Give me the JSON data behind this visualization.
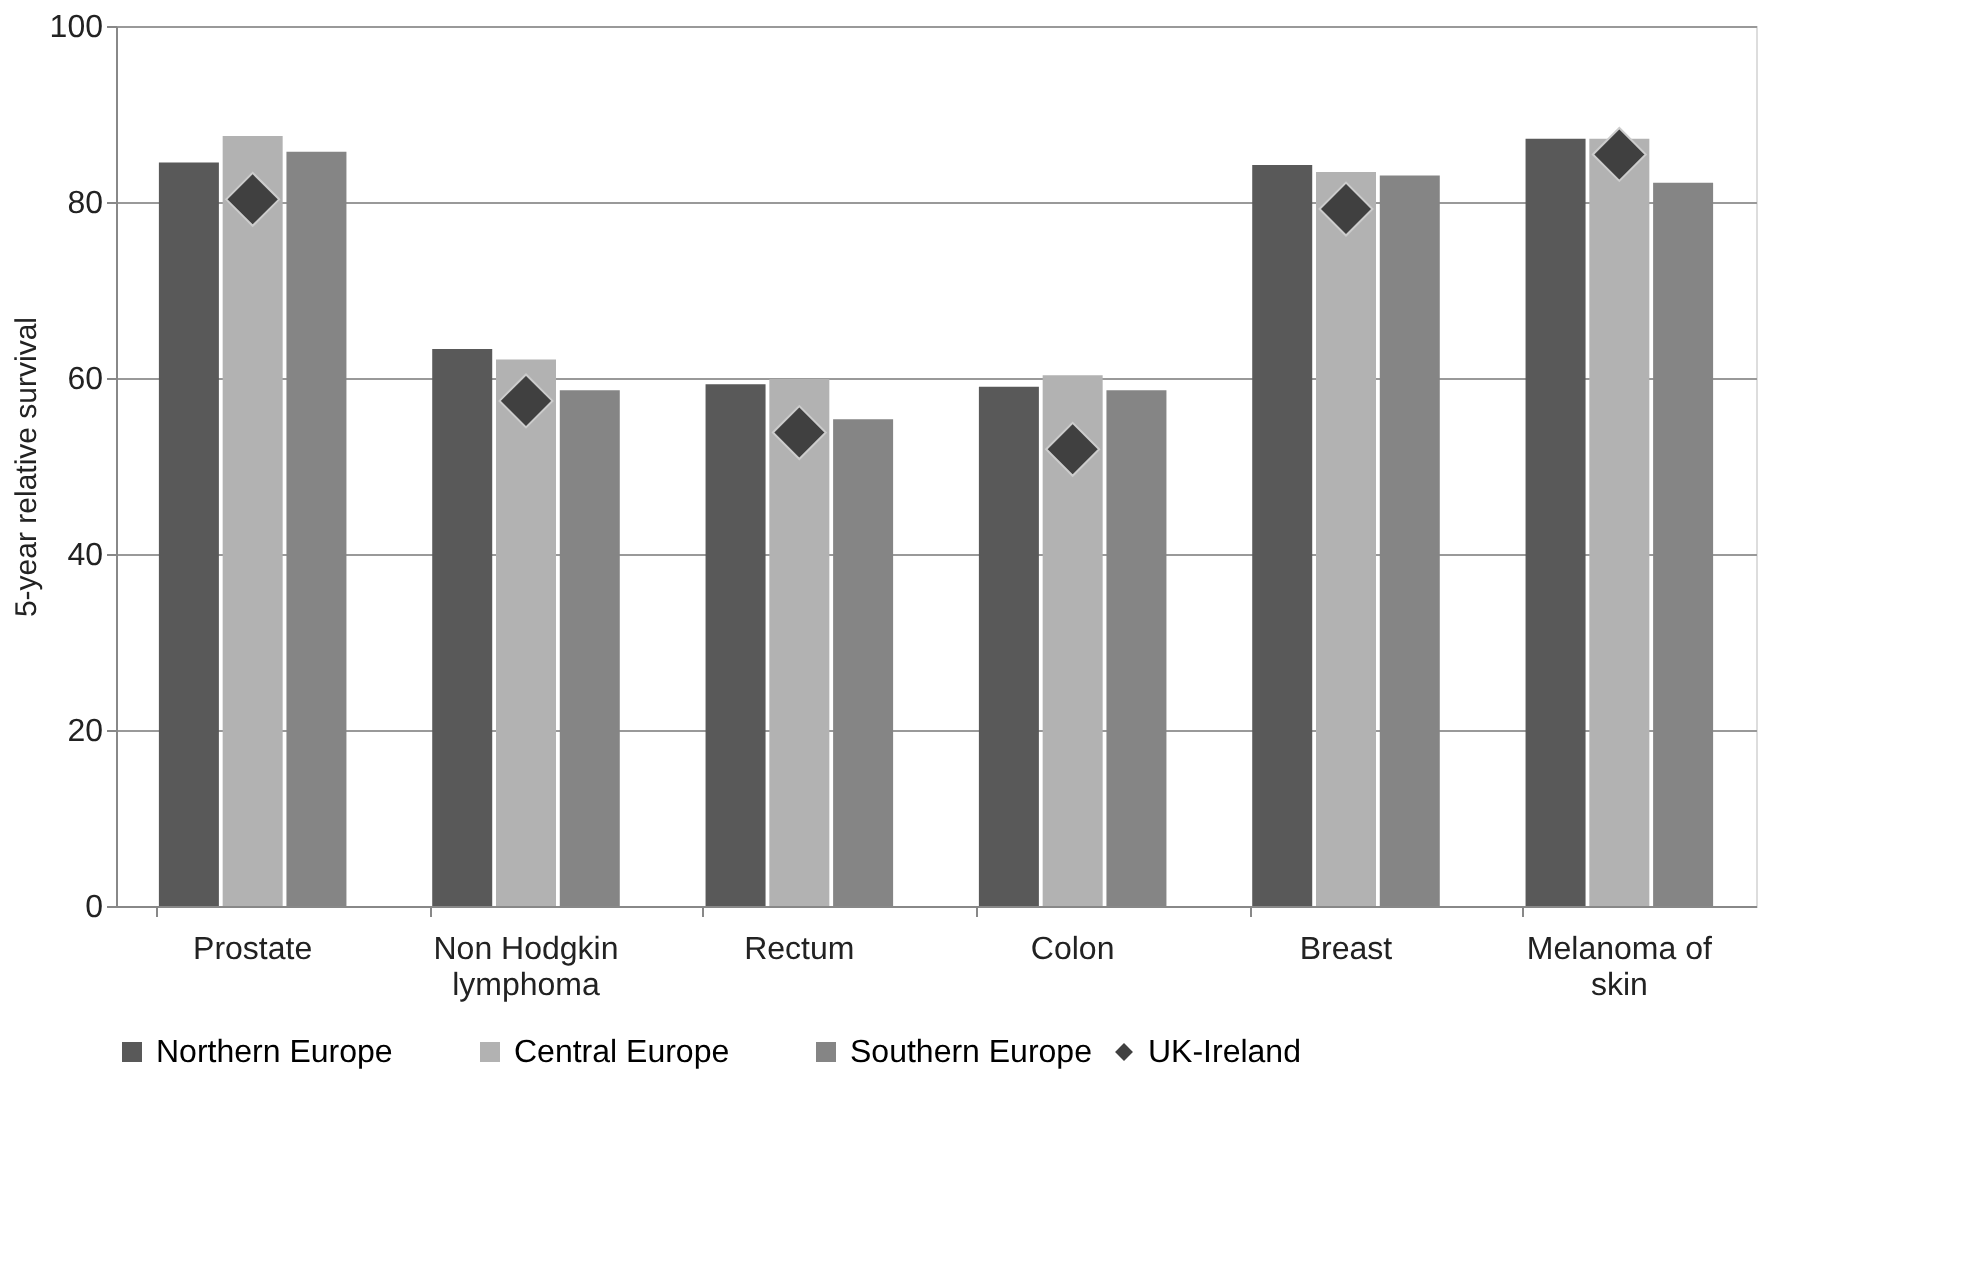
{
  "chart_data": {
    "type": "bar",
    "ylabel": "5-year relative survival",
    "categories": [
      "Prostate",
      "Non Hodgkin lymphoma",
      "Rectum",
      "Colon",
      "Breast",
      "Melanoma of skin"
    ],
    "series": [
      {
        "name": "Northern Europe",
        "color": "#595959",
        "values": [
          84.5,
          63.3,
          59.3,
          59.0,
          84.2,
          87.2
        ]
      },
      {
        "name": "Central Europe",
        "color": "#b2b2b2",
        "values": [
          87.5,
          62.1,
          59.9,
          60.3,
          83.4,
          87.2
        ]
      },
      {
        "name": "Southern Europe",
        "color": "#858585",
        "values": [
          85.7,
          58.6,
          55.3,
          58.6,
          83.0,
          82.2
        ]
      },
      {
        "name": "UK-Ireland",
        "color": "#404040",
        "type": "scatter",
        "marker": "diamond",
        "values": [
          80.3,
          57.4,
          53.8,
          51.9,
          79.2,
          85.4
        ]
      }
    ],
    "ylim": [
      0,
      100
    ],
    "yticks": [
      0,
      20,
      40,
      60,
      80,
      100
    ],
    "grid": "y",
    "legend": "bottom"
  }
}
